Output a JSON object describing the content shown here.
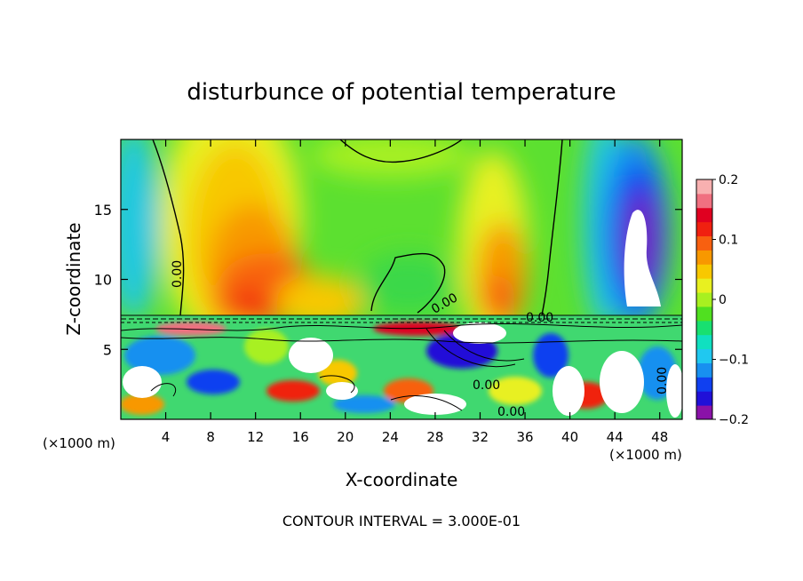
{
  "chart_data": {
    "type": "heatmap",
    "title": "disturbunce of potential temperature",
    "xlabel": "X-coordinate",
    "ylabel": "Z-coordinate",
    "x_unit": "(×1000 m)",
    "x_unit_right": "(×1000 m)",
    "footer": "CONTOUR INTERVAL = 3.000E-01",
    "xlim": [
      0,
      50
    ],
    "ylim": [
      0,
      20
    ],
    "x_ticks": [
      4,
      8,
      12,
      16,
      20,
      24,
      28,
      32,
      36,
      40,
      44,
      48
    ],
    "y_ticks": [
      5,
      10,
      15
    ],
    "colorbar": {
      "min": -0.2,
      "max": 0.2,
      "tick_values": [
        0.2,
        0.1,
        0,
        -0.1,
        -0.2
      ],
      "tick_labels": [
        "0.2",
        "0.1",
        "0",
        "−0.1",
        "−0.2"
      ],
      "colors": [
        "#8a12a8",
        "#2010d8",
        "#1040f0",
        "#1890f0",
        "#20c8f0",
        "#10e0c0",
        "#18e070",
        "#50e020",
        "#a8f020",
        "#e8f020",
        "#f8c800",
        "#f89800",
        "#f86010",
        "#f02010",
        "#e00020",
        "#f07080",
        "#f8b0b0"
      ]
    },
    "contour_labels": [
      "0.00"
    ],
    "features": [
      {
        "name": "positive-anomaly",
        "x": 11,
        "z": 10.5,
        "value": 0.14
      },
      {
        "name": "positive-anomaly-east",
        "x": 34,
        "z": 9,
        "value": 0.1
      },
      {
        "name": "negative-anomaly",
        "x": 46,
        "z": 13,
        "value": -0.2
      },
      {
        "name": "weak-positive-top",
        "x": 24,
        "z": 19,
        "value": 0.02
      }
    ]
  }
}
